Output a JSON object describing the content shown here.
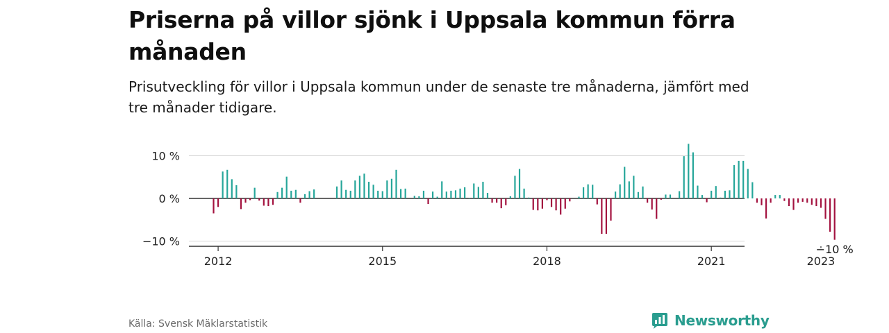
{
  "title": "Priserna på villor sjönk i Uppsala kommun förra månaden",
  "subtitle": "Prisutveckling för villor i Uppsala kommun under de senaste tre månaderna, jämfört med tre månader tidigare.",
  "source": "Källa: Svensk Mäklarstatistik",
  "brand": "Newsworthy",
  "colors": {
    "positive": "#26a69a",
    "negative": "#a3123f",
    "brand": "#2a9d8f"
  },
  "chart_data": {
    "type": "bar",
    "x_start": "2011-12",
    "ylim": [
      -11,
      12
    ],
    "y_ticks": [
      {
        "value": 10,
        "label": "10 %"
      },
      {
        "value": 0,
        "label": "0 %"
      },
      {
        "value": -10,
        "label": "−10 %"
      }
    ],
    "x_ticks": [
      {
        "month": "2012-01",
        "label": "2012"
      },
      {
        "month": "2015-01",
        "label": "2015"
      },
      {
        "month": "2018-01",
        "label": "2018"
      },
      {
        "month": "2021-01",
        "label": "2021"
      },
      {
        "month": "2023-01",
        "label": "2023"
      }
    ],
    "last_value_label": "−10 %",
    "grid": true,
    "values": [
      -3.5,
      -2,
      6.3,
      6.7,
      4.5,
      3.1,
      -2.5,
      -1,
      -0.4,
      2.5,
      -0.5,
      -1.7,
      -1.8,
      -1.5,
      1.5,
      2.5,
      5.1,
      1.8,
      2,
      -1,
      1,
      1.7,
      2.1,
      0,
      0,
      0,
      0,
      2.8,
      4.2,
      2,
      1.8,
      4.2,
      5.3,
      5.8,
      3.9,
      3.2,
      1.8,
      1.7,
      4.2,
      4.6,
      6.7,
      2.2,
      2.3,
      0,
      0.6,
      0.5,
      1.8,
      -1.3,
      1.6,
      0.4,
      4,
      1.6,
      1.8,
      1.9,
      2.3,
      2.6,
      0.1,
      3.5,
      2.7,
      3.9,
      1.3,
      -1,
      -1,
      -2.3,
      -1.6,
      0.5,
      5.3,
      6.9,
      2.3,
      0.2,
      -2.7,
      -2.8,
      -2.4,
      -0.4,
      -2,
      -2.8,
      -3.8,
      -2.4,
      -0.7,
      0,
      0.4,
      2.6,
      3.3,
      3.2,
      -1.4,
      -8.3,
      -8.3,
      -5.2,
      1.6,
      3.3,
      7.4,
      4,
      5.3,
      1.5,
      2.8,
      -1,
      -2.6,
      -4.8,
      -0.3,
      0.9,
      0.9,
      0,
      1.7,
      9.9,
      12.8,
      10.8,
      3,
      0.8,
      -0.9,
      1.8,
      2.9,
      0.2,
      1.8,
      1.9,
      7.8,
      8.8,
      8.8,
      6.9,
      3.8,
      -1,
      -1.6,
      -4.7,
      -1,
      0.8,
      0.8,
      -0.6,
      -1.8,
      -2.7,
      -1,
      -0.8,
      -1,
      -1.5,
      -1.8,
      -2.2,
      -4.8,
      -7.8,
      -9.7
    ]
  }
}
